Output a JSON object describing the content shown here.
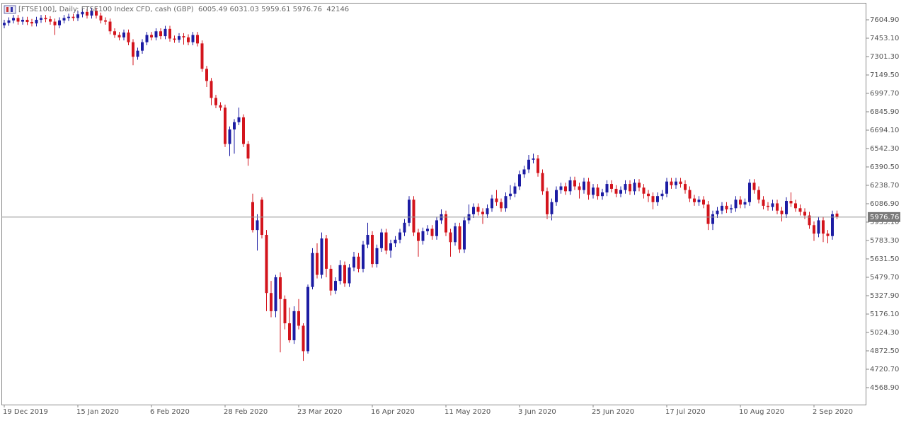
{
  "chart_data": {
    "type": "candlestick",
    "title": "[FTSE100], Daily: FTSE100 Index CFD, cash (GBP)",
    "volume": 42146,
    "up_color": "#1c1ca3",
    "down_color": "#d3141c",
    "grid": false,
    "ylim": [
      4428.8,
      7739.2
    ],
    "yticks": [
      {
        "value": 7604.9,
        "label": "7604.90"
      },
      {
        "value": 7453.1,
        "label": "7453.10"
      },
      {
        "value": 7301.3,
        "label": "7301.30"
      },
      {
        "value": 7149.5,
        "label": "7149.50"
      },
      {
        "value": 6997.7,
        "label": "6997.70"
      },
      {
        "value": 6845.9,
        "label": "6845.90"
      },
      {
        "value": 6694.1,
        "label": "6694.10"
      },
      {
        "value": 6542.3,
        "label": "6542.30"
      },
      {
        "value": 6390.5,
        "label": "6390.50"
      },
      {
        "value": 6238.7,
        "label": "6238.70"
      },
      {
        "value": 6086.9,
        "label": "6086.90"
      },
      {
        "value": 5935.1,
        "label": "5935.10"
      },
      {
        "value": 5783.3,
        "label": "5783.30"
      },
      {
        "value": 5631.5,
        "label": "5631.50"
      },
      {
        "value": 5479.7,
        "label": "5479.70"
      },
      {
        "value": 5327.9,
        "label": "5327.90"
      },
      {
        "value": 5176.1,
        "label": "5176.10"
      },
      {
        "value": 5024.3,
        "label": "5024.30"
      },
      {
        "value": 4872.5,
        "label": "4872.50"
      },
      {
        "value": 4720.7,
        "label": "4720.70"
      },
      {
        "value": 4568.9,
        "label": "4568.90"
      }
    ],
    "categories": [
      "19 Dec 2019",
      null,
      null,
      null,
      null,
      null,
      null,
      null,
      null,
      null,
      null,
      null,
      null,
      null,
      null,
      null,
      "15 Jan 2020",
      null,
      null,
      null,
      null,
      null,
      null,
      null,
      null,
      null,
      null,
      null,
      null,
      null,
      null,
      null,
      "6 Feb 2020",
      null,
      null,
      null,
      null,
      null,
      null,
      null,
      null,
      null,
      null,
      null,
      null,
      null,
      null,
      null,
      "28 Feb 2020",
      null,
      null,
      null,
      null,
      null,
      null,
      null,
      null,
      null,
      null,
      null,
      null,
      null,
      null,
      null,
      "23 Mar 2020",
      null,
      null,
      null,
      null,
      null,
      null,
      null,
      null,
      null,
      null,
      null,
      null,
      null,
      null,
      null,
      "16 Apr 2020",
      null,
      null,
      null,
      null,
      null,
      null,
      null,
      null,
      null,
      null,
      null,
      null,
      null,
      null,
      null,
      "11 May 2020",
      null,
      null,
      null,
      null,
      null,
      null,
      null,
      null,
      null,
      null,
      null,
      null,
      null,
      null,
      null,
      "3 Jun 2020",
      null,
      null,
      null,
      null,
      null,
      null,
      null,
      null,
      null,
      null,
      null,
      null,
      null,
      null,
      null,
      "25 Jun 2020",
      null,
      null,
      null,
      null,
      null,
      null,
      null,
      null,
      null,
      null,
      null,
      null,
      null,
      null,
      null,
      "17 Jul 2020",
      null,
      null,
      null,
      null,
      null,
      null,
      null,
      null,
      null,
      null,
      null,
      null,
      null,
      null,
      null,
      "10 Aug 2020",
      null,
      null,
      null,
      null,
      null,
      null,
      null,
      null,
      null,
      null,
      null,
      null,
      null,
      null,
      null,
      "2 Sep 2020",
      null,
      null,
      null,
      null,
      null
    ],
    "candles": [
      [
        7560,
        7605,
        7535,
        7580
      ],
      [
        7580,
        7625,
        7555,
        7600
      ],
      [
        7600,
        7645,
        7575,
        7620
      ],
      [
        7620,
        7645,
        7565,
        7590
      ],
      [
        7590,
        7630,
        7565,
        7605
      ],
      [
        7605,
        7630,
        7562,
        7587
      ],
      [
        7587,
        7612,
        7550,
        7575
      ],
      [
        7575,
        7630,
        7550,
        7605
      ],
      [
        7605,
        7645,
        7580,
        7620
      ],
      [
        7620,
        7645,
        7585,
        7610
      ],
      [
        7610,
        7635,
        7565,
        7590
      ],
      [
        7590,
        7615,
        7480,
        7560
      ],
      [
        7560,
        7625,
        7535,
        7600
      ],
      [
        7600,
        7645,
        7575,
        7620
      ],
      [
        7620,
        7655,
        7595,
        7630
      ],
      [
        7630,
        7655,
        7595,
        7620
      ],
      [
        7620,
        7675,
        7595,
        7650
      ],
      [
        7650,
        7695,
        7625,
        7670
      ],
      [
        7670,
        7695,
        7615,
        7640
      ],
      [
        7640,
        7705,
        7615,
        7680
      ],
      [
        7680,
        7705,
        7615,
        7640
      ],
      [
        7640,
        7665,
        7575,
        7600
      ],
      [
        7600,
        7625,
        7565,
        7590
      ],
      [
        7590,
        7615,
        7485,
        7510
      ],
      [
        7510,
        7535,
        7455,
        7480
      ],
      [
        7480,
        7505,
        7435,
        7460
      ],
      [
        7460,
        7525,
        7435,
        7500
      ],
      [
        7500,
        7525,
        7395,
        7420
      ],
      [
        7420,
        7445,
        7230,
        7300
      ],
      [
        7300,
        7375,
        7275,
        7350
      ],
      [
        7350,
        7445,
        7325,
        7420
      ],
      [
        7420,
        7505,
        7395,
        7480
      ],
      [
        7480,
        7505,
        7435,
        7460
      ],
      [
        7460,
        7535,
        7435,
        7510
      ],
      [
        7510,
        7535,
        7445,
        7470
      ],
      [
        7470,
        7555,
        7445,
        7530
      ],
      [
        7530,
        7555,
        7425,
        7450
      ],
      [
        7450,
        7475,
        7415,
        7440
      ],
      [
        7440,
        7495,
        7415,
        7470
      ],
      [
        7470,
        7495,
        7400,
        7460
      ],
      [
        7460,
        7485,
        7395,
        7420
      ],
      [
        7420,
        7505,
        7395,
        7480
      ],
      [
        7480,
        7505,
        7385,
        7410
      ],
      [
        7410,
        7435,
        7175,
        7200
      ],
      [
        7200,
        7225,
        7050,
        7100
      ],
      [
        7100,
        7125,
        6900,
        6960
      ],
      [
        6960,
        6985,
        6875,
        6900
      ],
      [
        6900,
        6925,
        6855,
        6880
      ],
      [
        6880,
        6905,
        6555,
        6580
      ],
      [
        6580,
        6725,
        6480,
        6700
      ],
      [
        6700,
        6785,
        6500,
        6760
      ],
      [
        6760,
        6880,
        6735,
        6800
      ],
      [
        6800,
        6825,
        6555,
        6580
      ],
      [
        6580,
        6605,
        6400,
        6460
      ],
      [
        6100,
        6170,
        5850,
        5870
      ],
      [
        5870,
        6000,
        5700,
        5950
      ],
      [
        6120,
        6140,
        5800,
        5830
      ],
      [
        5830,
        5870,
        5200,
        5350
      ],
      [
        5350,
        5450,
        5150,
        5200
      ],
      [
        5200,
        5500,
        5150,
        5480
      ],
      [
        5480,
        5520,
        4860,
        5300
      ],
      [
        5300,
        5330,
        5050,
        5100
      ],
      [
        5100,
        5230,
        4940,
        4960
      ],
      [
        4960,
        5240,
        4930,
        5200
      ],
      [
        5200,
        5300,
        5050,
        5080
      ],
      [
        5080,
        5100,
        4790,
        4870
      ],
      [
        4870,
        5420,
        4850,
        5400
      ],
      [
        5400,
        5720,
        5380,
        5680
      ],
      [
        5680,
        5760,
        5470,
        5500
      ],
      [
        5500,
        5850,
        5470,
        5800
      ],
      [
        5800,
        5830,
        5480,
        5550
      ],
      [
        5550,
        5580,
        5330,
        5370
      ],
      [
        5370,
        5480,
        5340,
        5450
      ],
      [
        5450,
        5620,
        5420,
        5580
      ],
      [
        5580,
        5610,
        5400,
        5430
      ],
      [
        5430,
        5590,
        5400,
        5560
      ],
      [
        5560,
        5690,
        5530,
        5650
      ],
      [
        5650,
        5680,
        5520,
        5550
      ],
      [
        5550,
        5780,
        5520,
        5750
      ],
      [
        5750,
        5930,
        5720,
        5830
      ],
      [
        5830,
        5860,
        5560,
        5590
      ],
      [
        5590,
        5750,
        5560,
        5720
      ],
      [
        5720,
        5880,
        5690,
        5850
      ],
      [
        5850,
        5880,
        5670,
        5700
      ],
      [
        5700,
        5790,
        5640,
        5760
      ],
      [
        5760,
        5820,
        5730,
        5790
      ],
      [
        5790,
        5880,
        5760,
        5850
      ],
      [
        5850,
        5960,
        5820,
        5930
      ],
      [
        5930,
        6150,
        5900,
        6120
      ],
      [
        6120,
        6150,
        5820,
        5850
      ],
      [
        5850,
        5880,
        5650,
        5780
      ],
      [
        5780,
        5890,
        5750,
        5860
      ],
      [
        5860,
        5910,
        5830,
        5880
      ],
      [
        5880,
        5910,
        5790,
        5820
      ],
      [
        5820,
        5980,
        5790,
        5950
      ],
      [
        5950,
        6040,
        5920,
        6000
      ],
      [
        6000,
        6030,
        5820,
        5850
      ],
      [
        5850,
        5880,
        5650,
        5770
      ],
      [
        5770,
        5930,
        5740,
        5900
      ],
      [
        5900,
        5930,
        5680,
        5710
      ],
      [
        5710,
        5980,
        5680,
        5950
      ],
      [
        5950,
        6080,
        5920,
        6000
      ],
      [
        6000,
        6090,
        5970,
        6060
      ],
      [
        6060,
        6090,
        5990,
        6020
      ],
      [
        6020,
        6050,
        5920,
        6000
      ],
      [
        6000,
        6080,
        5970,
        6050
      ],
      [
        6050,
        6160,
        6020,
        6130
      ],
      [
        6130,
        6200,
        6070,
        6100
      ],
      [
        6100,
        6130,
        6020,
        6050
      ],
      [
        6050,
        6180,
        6020,
        6150
      ],
      [
        6150,
        6240,
        6120,
        6170
      ],
      [
        6170,
        6260,
        6140,
        6230
      ],
      [
        6230,
        6360,
        6200,
        6330
      ],
      [
        6330,
        6400,
        6300,
        6370
      ],
      [
        6370,
        6490,
        6340,
        6450
      ],
      [
        6450,
        6500,
        6420,
        6460
      ],
      [
        6460,
        6490,
        6310,
        6340
      ],
      [
        6340,
        6370,
        6160,
        6190
      ],
      [
        6190,
        6220,
        5960,
        6000
      ],
      [
        6000,
        6130,
        5950,
        6100
      ],
      [
        6100,
        6230,
        6070,
        6200
      ],
      [
        6200,
        6260,
        6170,
        6230
      ],
      [
        6230,
        6260,
        6160,
        6190
      ],
      [
        6190,
        6310,
        6160,
        6280
      ],
      [
        6280,
        6310,
        6200,
        6230
      ],
      [
        6230,
        6260,
        6130,
        6200
      ],
      [
        6200,
        6300,
        6170,
        6270
      ],
      [
        6270,
        6300,
        6120,
        6160
      ],
      [
        6160,
        6250,
        6130,
        6220
      ],
      [
        6220,
        6250,
        6120,
        6150
      ],
      [
        6150,
        6210,
        6120,
        6180
      ],
      [
        6180,
        6280,
        6150,
        6250
      ],
      [
        6250,
        6280,
        6180,
        6210
      ],
      [
        6210,
        6240,
        6140,
        6170
      ],
      [
        6170,
        6230,
        6140,
        6200
      ],
      [
        6200,
        6280,
        6170,
        6250
      ],
      [
        6250,
        6280,
        6160,
        6190
      ],
      [
        6190,
        6290,
        6160,
        6260
      ],
      [
        6260,
        6290,
        6190,
        6220
      ],
      [
        6220,
        6250,
        6130,
        6170
      ],
      [
        6170,
        6200,
        6100,
        6150
      ],
      [
        6150,
        6180,
        6040,
        6100
      ],
      [
        6100,
        6180,
        6070,
        6150
      ],
      [
        6150,
        6200,
        6120,
        6170
      ],
      [
        6170,
        6300,
        6140,
        6270
      ],
      [
        6270,
        6300,
        6210,
        6240
      ],
      [
        6240,
        6300,
        6210,
        6270
      ],
      [
        6270,
        6300,
        6220,
        6250
      ],
      [
        6250,
        6280,
        6170,
        6200
      ],
      [
        6200,
        6230,
        6100,
        6130
      ],
      [
        6130,
        6160,
        6070,
        6100
      ],
      [
        6100,
        6150,
        6070,
        6120
      ],
      [
        6120,
        6150,
        6050,
        6080
      ],
      [
        6080,
        6110,
        5870,
        5920
      ],
      [
        5920,
        6030,
        5870,
        6000
      ],
      [
        6000,
        6060,
        5970,
        6030
      ],
      [
        6030,
        6100,
        6000,
        6070
      ],
      [
        6070,
        6100,
        6010,
        6040
      ],
      [
        6040,
        6080,
        6010,
        6050
      ],
      [
        6050,
        6150,
        6020,
        6120
      ],
      [
        6120,
        6150,
        6050,
        6080
      ],
      [
        6080,
        6130,
        6050,
        6100
      ],
      [
        6100,
        6290,
        6070,
        6260
      ],
      [
        6260,
        6290,
        6170,
        6200
      ],
      [
        6200,
        6230,
        6090,
        6120
      ],
      [
        6120,
        6150,
        6040,
        6070
      ],
      [
        6070,
        6100,
        6030,
        6060
      ],
      [
        6060,
        6120,
        6030,
        6090
      ],
      [
        6090,
        6120,
        6000,
        6030
      ],
      [
        6030,
        6060,
        5940,
        6000
      ],
      [
        6000,
        6140,
        5970,
        6110
      ],
      [
        6110,
        6180,
        6060,
        6090
      ],
      [
        6090,
        6120,
        6020,
        6050
      ],
      [
        6050,
        6080,
        5990,
        6020
      ],
      [
        6020,
        6050,
        5960,
        5990
      ],
      [
        5990,
        6020,
        5880,
        5910
      ],
      [
        5910,
        5940,
        5780,
        5840
      ],
      [
        5840,
        5980,
        5810,
        5950
      ],
      [
        5950,
        5980,
        5770,
        5840
      ],
      [
        5840,
        5870,
        5760,
        5820
      ],
      [
        5820,
        6030,
        5790,
        6000
      ],
      [
        6005.49,
        6031.03,
        5959.61,
        5976.76
      ]
    ]
  }
}
